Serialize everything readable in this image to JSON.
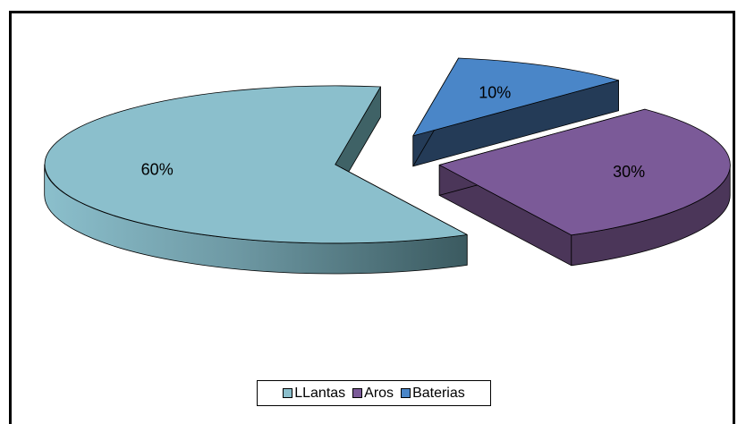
{
  "chart_data": {
    "type": "pie",
    "style": "3d-exploded",
    "title": "",
    "legend_position": "bottom",
    "slices": [
      {
        "name": "LLantas",
        "value": 60,
        "label": "60%",
        "color": "#8BBFCC",
        "side_color": "#3F6266"
      },
      {
        "name": "Aros",
        "value": 30,
        "label": "30%",
        "color": "#7B5A98",
        "side_color": "#4B3659"
      },
      {
        "name": "Baterias",
        "value": 10,
        "label": "10%",
        "color": "#4A86C8",
        "side_color": "#243B57"
      }
    ]
  }
}
